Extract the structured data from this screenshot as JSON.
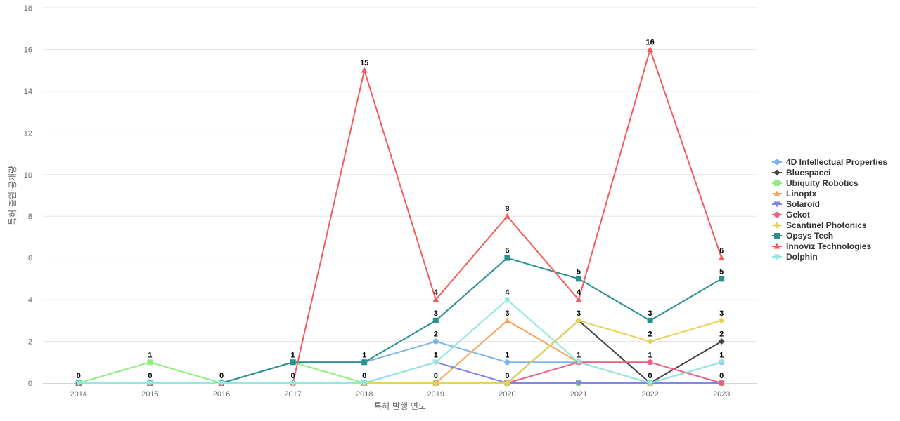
{
  "chart_data": {
    "type": "line",
    "title": "",
    "xlabel": "특허 발행 연도",
    "ylabel": "특허 출원 공개량",
    "x": [
      "2014",
      "2015",
      "2016",
      "2017",
      "2018",
      "2019",
      "2020",
      "2021",
      "2022",
      "2023"
    ],
    "yticks": [
      "0",
      "2",
      "4",
      "6",
      "8",
      "10",
      "12",
      "14",
      "16",
      "18"
    ],
    "ylim": [
      0,
      18
    ],
    "grid": true,
    "legend_position": "right",
    "series": [
      {
        "name": "4D Intellectual Properties",
        "color": "#7cb5ec",
        "marker": "circle",
        "values": [
          0,
          0,
          0,
          1,
          1,
          2,
          1,
          1,
          0,
          1
        ]
      },
      {
        "name": "Bluespacei",
        "color": "#434348",
        "marker": "diamond",
        "values": [
          0,
          0,
          0,
          0,
          0,
          0,
          0,
          3,
          0,
          2
        ]
      },
      {
        "name": "Ubiquity Robotics",
        "color": "#90ed7d",
        "marker": "square",
        "values": [
          0,
          1,
          0,
          1,
          0,
          0,
          0,
          0,
          0,
          0
        ]
      },
      {
        "name": "Linoptx",
        "color": "#f7a35c",
        "marker": "triangle",
        "values": [
          0,
          0,
          0,
          0,
          0,
          0,
          3,
          1,
          0,
          0
        ]
      },
      {
        "name": "Solaroid",
        "color": "#8085e9",
        "marker": "triangle-down",
        "values": [
          0,
          0,
          0,
          0,
          0,
          1,
          0,
          0,
          0,
          0
        ]
      },
      {
        "name": "Gekot",
        "color": "#f15c80",
        "marker": "circle",
        "values": [
          0,
          0,
          0,
          0,
          0,
          0,
          0,
          1,
          1,
          0
        ]
      },
      {
        "name": "Scantinel Photonics",
        "color": "#e4d354",
        "marker": "diamond",
        "values": [
          0,
          0,
          0,
          0,
          0,
          0,
          0,
          3,
          2,
          3
        ]
      },
      {
        "name": "Opsys Tech",
        "color": "#2b908f",
        "marker": "square",
        "values": [
          0,
          0,
          0,
          1,
          1,
          3,
          6,
          5,
          3,
          5
        ]
      },
      {
        "name": "Innoviz Technologies",
        "color": "#f45b5b",
        "marker": "triangle",
        "values": [
          0,
          0,
          0,
          0,
          15,
          4,
          8,
          4,
          16,
          6
        ]
      },
      {
        "name": "Dolphin",
        "color": "#91e8e1",
        "marker": "triangle-down",
        "values": [
          0,
          0,
          0,
          0,
          0,
          1,
          4,
          1,
          0,
          1
        ]
      }
    ],
    "data_labels": [
      {
        "x": "2014",
        "series": "4D Intellectual Properties",
        "text": "0"
      },
      {
        "x": "2015",
        "series": "Ubiquity Robotics",
        "text": "1"
      },
      {
        "x": "2015",
        "series": "4D Intellectual Properties",
        "text": "0"
      },
      {
        "x": "2016",
        "series": "4D Intellectual Properties",
        "text": "0"
      },
      {
        "x": "2017",
        "series": "Opsys Tech",
        "text": "1"
      },
      {
        "x": "2017",
        "series": "Innoviz Technologies",
        "text": "0"
      },
      {
        "x": "2018",
        "series": "Innoviz Technologies",
        "text": "15"
      },
      {
        "x": "2018",
        "series": "Opsys Tech",
        "text": "1"
      },
      {
        "x": "2018",
        "series": "Ubiquity Robotics",
        "text": "0"
      },
      {
        "x": "2019",
        "series": "Innoviz Technologies",
        "text": "4"
      },
      {
        "x": "2019",
        "series": "Opsys Tech",
        "text": "3"
      },
      {
        "x": "2019",
        "series": "4D Intellectual Properties",
        "text": "2"
      },
      {
        "x": "2019",
        "series": "Dolphin",
        "text": "1"
      },
      {
        "x": "2019",
        "series": "Linoptx",
        "text": "0"
      },
      {
        "x": "2020",
        "series": "Innoviz Technologies",
        "text": "8"
      },
      {
        "x": "2020",
        "series": "Opsys Tech",
        "text": "6"
      },
      {
        "x": "2020",
        "series": "Dolphin",
        "text": "4"
      },
      {
        "x": "2020",
        "series": "Linoptx",
        "text": "3"
      },
      {
        "x": "2020",
        "series": "4D Intellectual Properties",
        "text": "1"
      },
      {
        "x": "2020",
        "series": "Gekot",
        "text": "0"
      },
      {
        "x": "2021",
        "series": "Opsys Tech",
        "text": "5"
      },
      {
        "x": "2021",
        "series": "Innoviz Technologies",
        "text": "4"
      },
      {
        "x": "2021",
        "series": "Scantinel Photonics",
        "text": "3"
      },
      {
        "x": "2021",
        "series": "4D Intellectual Properties",
        "text": "1"
      },
      {
        "x": "2022",
        "series": "Innoviz Technologies",
        "text": "16"
      },
      {
        "x": "2022",
        "series": "Opsys Tech",
        "text": "3"
      },
      {
        "x": "2022",
        "series": "Scantinel Photonics",
        "text": "2"
      },
      {
        "x": "2022",
        "series": "Gekot",
        "text": "1"
      },
      {
        "x": "2022",
        "series": "Dolphin",
        "text": "0"
      },
      {
        "x": "2023",
        "series": "Innoviz Technologies",
        "text": "6"
      },
      {
        "x": "2023",
        "series": "Opsys Tech",
        "text": "5"
      },
      {
        "x": "2023",
        "series": "Scantinel Photonics",
        "text": "3"
      },
      {
        "x": "2023",
        "series": "Bluespacei",
        "text": "2"
      },
      {
        "x": "2023",
        "series": "4D Intellectual Properties",
        "text": "1"
      },
      {
        "x": "2023",
        "series": "Gekot",
        "text": "0"
      }
    ]
  }
}
